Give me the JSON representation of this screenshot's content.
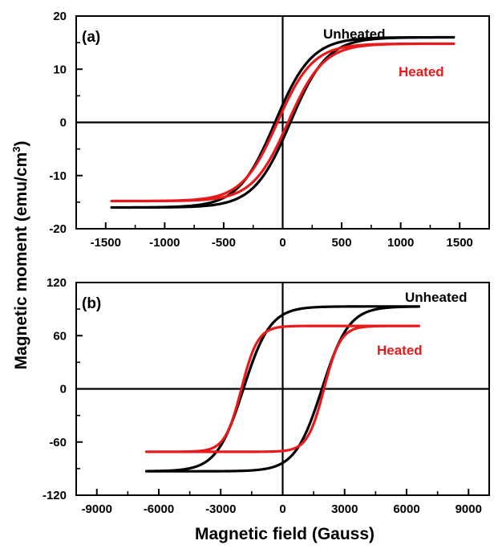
{
  "colors": {
    "unheated": "#000000",
    "heated": "#e8191b",
    "axis": "#000000",
    "background": "#ffffff"
  },
  "xlabel": "Magnetic field (Gauss)",
  "ylabel_main": "Magnetic moment (emu/cm",
  "ylabel_sup": "3",
  "ylabel_close": ")",
  "chart_data": [
    {
      "type": "line",
      "panel_label": "(a)",
      "xlim": [
        -1750,
        1750
      ],
      "ylim": [
        -20,
        20
      ],
      "xticks": [
        -1500,
        -1000,
        -500,
        0,
        500,
        1000,
        1500
      ],
      "yticks": [
        -20,
        -10,
        0,
        10,
        20
      ],
      "xtick_labels": [
        "-1500",
        "-1000",
        "-500",
        "0",
        "500",
        "1000",
        "1500"
      ],
      "ytick_labels": [
        "-20",
        "-10",
        "0",
        "10",
        "20"
      ],
      "grid": false,
      "series": [
        {
          "name": "Unheated",
          "color": "#000000",
          "saturation": 16,
          "coercivity": 65,
          "field_max": 1450,
          "shape_width": 310
        },
        {
          "name": "Heated",
          "color": "#e8191b",
          "saturation": 14.8,
          "coercivity": 45,
          "field_max": 1450,
          "shape_width": 300
        }
      ]
    },
    {
      "type": "line",
      "panel_label": "(b)",
      "xlim": [
        -10000,
        10000
      ],
      "ylim": [
        -120,
        120
      ],
      "xticks": [
        -9000,
        -6000,
        -3000,
        0,
        3000,
        6000,
        9000
      ],
      "yticks": [
        -120,
        -60,
        0,
        60,
        120
      ],
      "xtick_labels": [
        "-9000",
        "-6000",
        "-3000",
        "0",
        "3000",
        "6000",
        "9000"
      ],
      "ytick_labels": [
        "-120",
        "-60",
        "0",
        "60",
        "120"
      ],
      "grid": false,
      "series": [
        {
          "name": "Unheated",
          "color": "#000000",
          "saturation": 93,
          "coercivity": 1900,
          "field_max": 6600,
          "shape_width": 1300
        },
        {
          "name": "Heated",
          "color": "#e8191b",
          "saturation": 71,
          "coercivity": 2000,
          "field_max": 6600,
          "shape_width": 800
        }
      ]
    }
  ]
}
